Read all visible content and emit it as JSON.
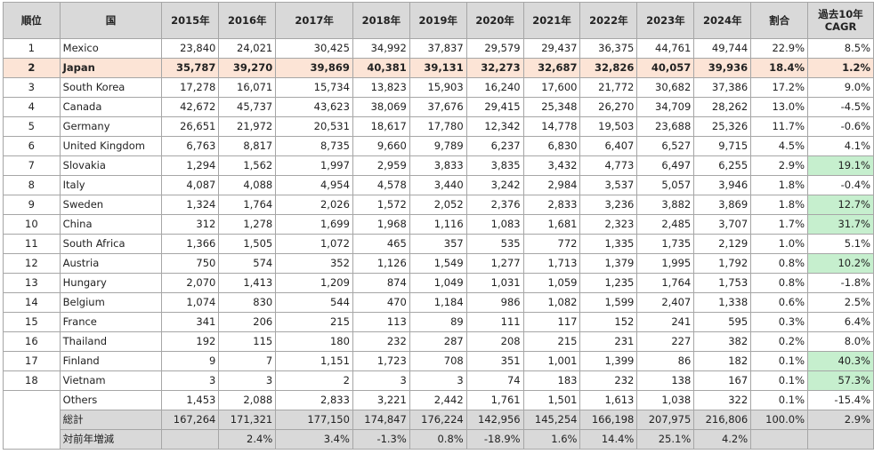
{
  "headers": {
    "rank": "順位",
    "country": "国",
    "years": [
      "2015年",
      "2016年",
      "2017年",
      "2018年",
      "2019年",
      "2020年",
      "2021年",
      "2022年",
      "2023年",
      "2024年"
    ],
    "share": "割合",
    "cagr_line1": "過去10年",
    "cagr_line2": "CAGR"
  },
  "rows": [
    {
      "rank": "1",
      "country": "Mexico",
      "v": [
        "23,840",
        "24,021",
        "30,425",
        "34,992",
        "37,837",
        "29,579",
        "29,437",
        "36,375",
        "44,761",
        "49,744"
      ],
      "share": "22.9%",
      "cagr": "8.5%"
    },
    {
      "rank": "2",
      "country": "Japan",
      "v": [
        "35,787",
        "39,270",
        "39,869",
        "40,381",
        "39,131",
        "32,273",
        "32,687",
        "32,826",
        "40,057",
        "39,936"
      ],
      "share": "18.4%",
      "cagr": "1.2%"
    },
    {
      "rank": "3",
      "country": "South Korea",
      "v": [
        "17,278",
        "16,071",
        "15,734",
        "13,823",
        "15,903",
        "16,240",
        "17,600",
        "21,772",
        "30,682",
        "37,386"
      ],
      "share": "17.2%",
      "cagr": "9.0%"
    },
    {
      "rank": "4",
      "country": "Canada",
      "v": [
        "42,672",
        "45,737",
        "43,623",
        "38,069",
        "37,676",
        "29,415",
        "25,348",
        "26,270",
        "34,709",
        "28,262"
      ],
      "share": "13.0%",
      "cagr": "-4.5%"
    },
    {
      "rank": "5",
      "country": "Germany",
      "v": [
        "26,651",
        "21,972",
        "20,531",
        "18,617",
        "17,780",
        "12,342",
        "14,778",
        "19,503",
        "23,688",
        "25,326"
      ],
      "share": "11.7%",
      "cagr": "-0.6%"
    },
    {
      "rank": "6",
      "country": "United Kingdom",
      "v": [
        "6,763",
        "8,817",
        "8,735",
        "9,660",
        "9,789",
        "6,237",
        "6,830",
        "6,407",
        "6,527",
        "9,715"
      ],
      "share": "4.5%",
      "cagr": "4.1%"
    },
    {
      "rank": "7",
      "country": "Slovakia",
      "v": [
        "1,294",
        "1,562",
        "1,997",
        "2,959",
        "3,833",
        "3,835",
        "3,432",
        "4,773",
        "6,497",
        "6,255"
      ],
      "share": "2.9%",
      "cagr": "19.1%"
    },
    {
      "rank": "8",
      "country": "Italy",
      "v": [
        "4,087",
        "4,088",
        "4,954",
        "4,578",
        "3,440",
        "3,242",
        "2,984",
        "3,537",
        "5,057",
        "3,946"
      ],
      "share": "1.8%",
      "cagr": "-0.4%"
    },
    {
      "rank": "9",
      "country": "Sweden",
      "v": [
        "1,324",
        "1,764",
        "2,026",
        "1,572",
        "2,052",
        "2,376",
        "2,833",
        "3,236",
        "3,882",
        "3,869"
      ],
      "share": "1.8%",
      "cagr": "12.7%"
    },
    {
      "rank": "10",
      "country": "China",
      "v": [
        "312",
        "1,278",
        "1,699",
        "1,968",
        "1,116",
        "1,083",
        "1,681",
        "2,323",
        "2,485",
        "3,707"
      ],
      "share": "1.7%",
      "cagr": "31.7%"
    },
    {
      "rank": "11",
      "country": "South Africa",
      "v": [
        "1,366",
        "1,505",
        "1,072",
        "465",
        "357",
        "535",
        "772",
        "1,335",
        "1,735",
        "2,129"
      ],
      "share": "1.0%",
      "cagr": "5.1%"
    },
    {
      "rank": "12",
      "country": "Austria",
      "v": [
        "750",
        "574",
        "352",
        "1,126",
        "1,549",
        "1,277",
        "1,713",
        "1,379",
        "1,995",
        "1,792"
      ],
      "share": "0.8%",
      "cagr": "10.2%"
    },
    {
      "rank": "13",
      "country": "Hungary",
      "v": [
        "2,070",
        "1,413",
        "1,209",
        "874",
        "1,049",
        "1,031",
        "1,059",
        "1,235",
        "1,764",
        "1,753"
      ],
      "share": "0.8%",
      "cagr": "-1.8%"
    },
    {
      "rank": "14",
      "country": "Belgium",
      "v": [
        "1,074",
        "830",
        "544",
        "470",
        "1,184",
        "986",
        "1,082",
        "1,599",
        "2,407",
        "1,338"
      ],
      "share": "0.6%",
      "cagr": "2.5%"
    },
    {
      "rank": "15",
      "country": "France",
      "v": [
        "341",
        "206",
        "215",
        "113",
        "89",
        "111",
        "117",
        "152",
        "241",
        "595"
      ],
      "share": "0.3%",
      "cagr": "6.4%"
    },
    {
      "rank": "16",
      "country": "Thailand",
      "v": [
        "192",
        "115",
        "180",
        "232",
        "287",
        "208",
        "215",
        "231",
        "227",
        "382"
      ],
      "share": "0.2%",
      "cagr": "8.0%"
    },
    {
      "rank": "17",
      "country": "Finland",
      "v": [
        "9",
        "7",
        "1,151",
        "1,723",
        "708",
        "351",
        "1,001",
        "1,399",
        "86",
        "182"
      ],
      "share": "0.1%",
      "cagr": "40.3%"
    },
    {
      "rank": "18",
      "country": "Vietnam",
      "v": [
        "3",
        "3",
        "2",
        "3",
        "3",
        "74",
        "183",
        "232",
        "138",
        "167"
      ],
      "share": "0.1%",
      "cagr": "57.3%"
    },
    {
      "rank": "",
      "country": "Others",
      "v": [
        "1,453",
        "2,088",
        "2,833",
        "3,221",
        "2,442",
        "1,761",
        "1,501",
        "1,613",
        "1,038",
        "322"
      ],
      "share": "0.1%",
      "cagr": "-15.4%"
    }
  ],
  "total": {
    "label": "総計",
    "v": [
      "167,264",
      "171,321",
      "177,150",
      "174,847",
      "176,224",
      "142,956",
      "145,254",
      "166,198",
      "207,975",
      "216,806"
    ],
    "share": "100.0%",
    "cagr": "2.9%"
  },
  "yoy": {
    "label": "対前年増減",
    "v": [
      "",
      "2.4%",
      "3.4%",
      "-1.3%",
      "0.8%",
      "-18.9%",
      "1.6%",
      "14.4%",
      "25.1%",
      "4.2%"
    ]
  },
  "colors": {
    "header_bg": "#d9d9d9",
    "highlight_row": "#fce4d6",
    "cagr_green": "#c6efce",
    "border": "#a6a6a6"
  },
  "highlight_rank": "2",
  "green_cagr_ranks": [
    "7",
    "9",
    "10",
    "12",
    "17",
    "18"
  ]
}
